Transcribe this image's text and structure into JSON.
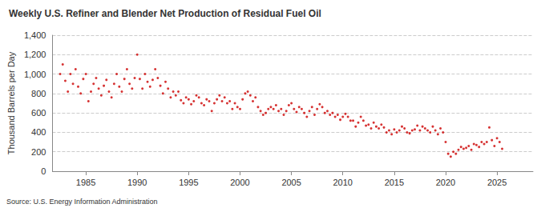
{
  "chart_data": {
    "type": "scatter",
    "title": "Weekly U.S. Refiner and Blender Net Production of Residual Fuel Oil",
    "y_label": "Thousand Barrels per Day",
    "annotation": "Source: U.S. Energy Information Administration",
    "color": "#cc0000",
    "marker": "circle",
    "grid": true,
    "xlim": [
      1981.75,
      2028.5
    ],
    "xticks": [
      1985,
      1990,
      1995,
      2000,
      2005,
      2010,
      2015,
      2020,
      2025
    ],
    "ylim": [
      0,
      1400
    ],
    "yticks": [
      0,
      200,
      400,
      600,
      800,
      {
        "value": 1000,
        "label": "1,000"
      },
      {
        "value": 1200,
        "label": "1,200"
      },
      {
        "value": 1400,
        "label": "1,400"
      }
    ],
    "x": [
      1982.5,
      1982.75,
      1983,
      1983.25,
      1983.5,
      1983.75,
      1984,
      1984.25,
      1984.5,
      1984.75,
      1985,
      1985.25,
      1985.5,
      1985.75,
      1986,
      1986.25,
      1986.5,
      1986.75,
      1987,
      1987.25,
      1987.5,
      1987.75,
      1988,
      1988.25,
      1988.5,
      1988.75,
      1989,
      1989.25,
      1989.5,
      1989.75,
      1990,
      1990.25,
      1990.5,
      1990.75,
      1991,
      1991.25,
      1991.5,
      1991.75,
      1992,
      1992.25,
      1992.5,
      1992.75,
      1993,
      1993.25,
      1993.5,
      1993.75,
      1994,
      1994.25,
      1994.5,
      1994.75,
      1995,
      1995.25,
      1995.5,
      1995.75,
      1996,
      1996.25,
      1996.5,
      1996.75,
      1997,
      1997.25,
      1997.5,
      1997.75,
      1998,
      1998.25,
      1998.5,
      1998.75,
      1999,
      1999.25,
      1999.5,
      1999.75,
      2000,
      2000.25,
      2000.5,
      2000.75,
      2001,
      2001.25,
      2001.5,
      2001.75,
      2002,
      2002.25,
      2002.5,
      2002.75,
      2003,
      2003.25,
      2003.5,
      2003.75,
      2004,
      2004.25,
      2004.5,
      2004.75,
      2005,
      2005.25,
      2005.5,
      2005.75,
      2006,
      2006.25,
      2006.5,
      2006.75,
      2007,
      2007.25,
      2007.5,
      2007.75,
      2008,
      2008.25,
      2008.5,
      2008.75,
      2009,
      2009.25,
      2009.5,
      2009.75,
      2010,
      2010.25,
      2010.5,
      2010.75,
      2011,
      2011.25,
      2011.5,
      2011.75,
      2012,
      2012.25,
      2012.5,
      2012.75,
      2013,
      2013.25,
      2013.5,
      2013.75,
      2014,
      2014.25,
      2014.5,
      2014.75,
      2015,
      2015.25,
      2015.5,
      2015.75,
      2016,
      2016.25,
      2016.5,
      2016.75,
      2017,
      2017.25,
      2017.5,
      2017.75,
      2018,
      2018.25,
      2018.5,
      2018.75,
      2019,
      2019.25,
      2019.5,
      2019.75,
      2020,
      2020.25,
      2020.5,
      2020.75,
      2021,
      2021.25,
      2021.5,
      2021.75,
      2022,
      2022.25,
      2022.5,
      2022.75,
      2023,
      2023.25,
      2023.5,
      2023.75,
      2024,
      2024.25,
      2024.5,
      2024.75,
      2025,
      2025.25,
      2025.5
    ],
    "values": [
      1000,
      1100,
      930,
      820,
      1000,
      900,
      1050,
      870,
      800,
      950,
      1000,
      720,
      820,
      900,
      960,
      850,
      780,
      880,
      940,
      820,
      760,
      900,
      1000,
      870,
      820,
      950,
      1050,
      900,
      850,
      960,
      1200,
      950,
      850,
      1000,
      920,
      870,
      940,
      1050,
      960,
      880,
      800,
      920,
      850,
      760,
      820,
      780,
      820,
      730,
      700,
      760,
      740,
      690,
      720,
      780,
      760,
      700,
      680,
      740,
      720,
      620,
      700,
      740,
      780,
      720,
      760,
      700,
      720,
      640,
      700,
      660,
      640,
      740,
      800,
      820,
      780,
      720,
      760,
      660,
      620,
      580,
      600,
      640,
      660,
      640,
      680,
      620,
      640,
      580,
      620,
      680,
      700,
      640,
      610,
      660,
      640,
      600,
      560,
      620,
      660,
      580,
      640,
      690,
      660,
      600,
      620,
      580,
      600,
      560,
      580,
      530,
      560,
      590,
      560,
      520,
      520,
      460,
      500,
      560,
      520,
      470,
      480,
      440,
      500,
      460,
      440,
      480,
      450,
      400,
      420,
      380,
      430,
      400,
      420,
      460,
      440,
      400,
      390,
      420,
      430,
      470,
      420,
      460,
      440,
      420,
      400,
      460,
      420,
      380,
      440,
      400,
      300,
      180,
      150,
      200,
      180,
      220,
      250,
      230,
      240,
      260,
      220,
      280,
      270,
      250,
      300,
      280,
      300,
      450,
      320,
      260,
      340,
      300,
      230
    ]
  }
}
